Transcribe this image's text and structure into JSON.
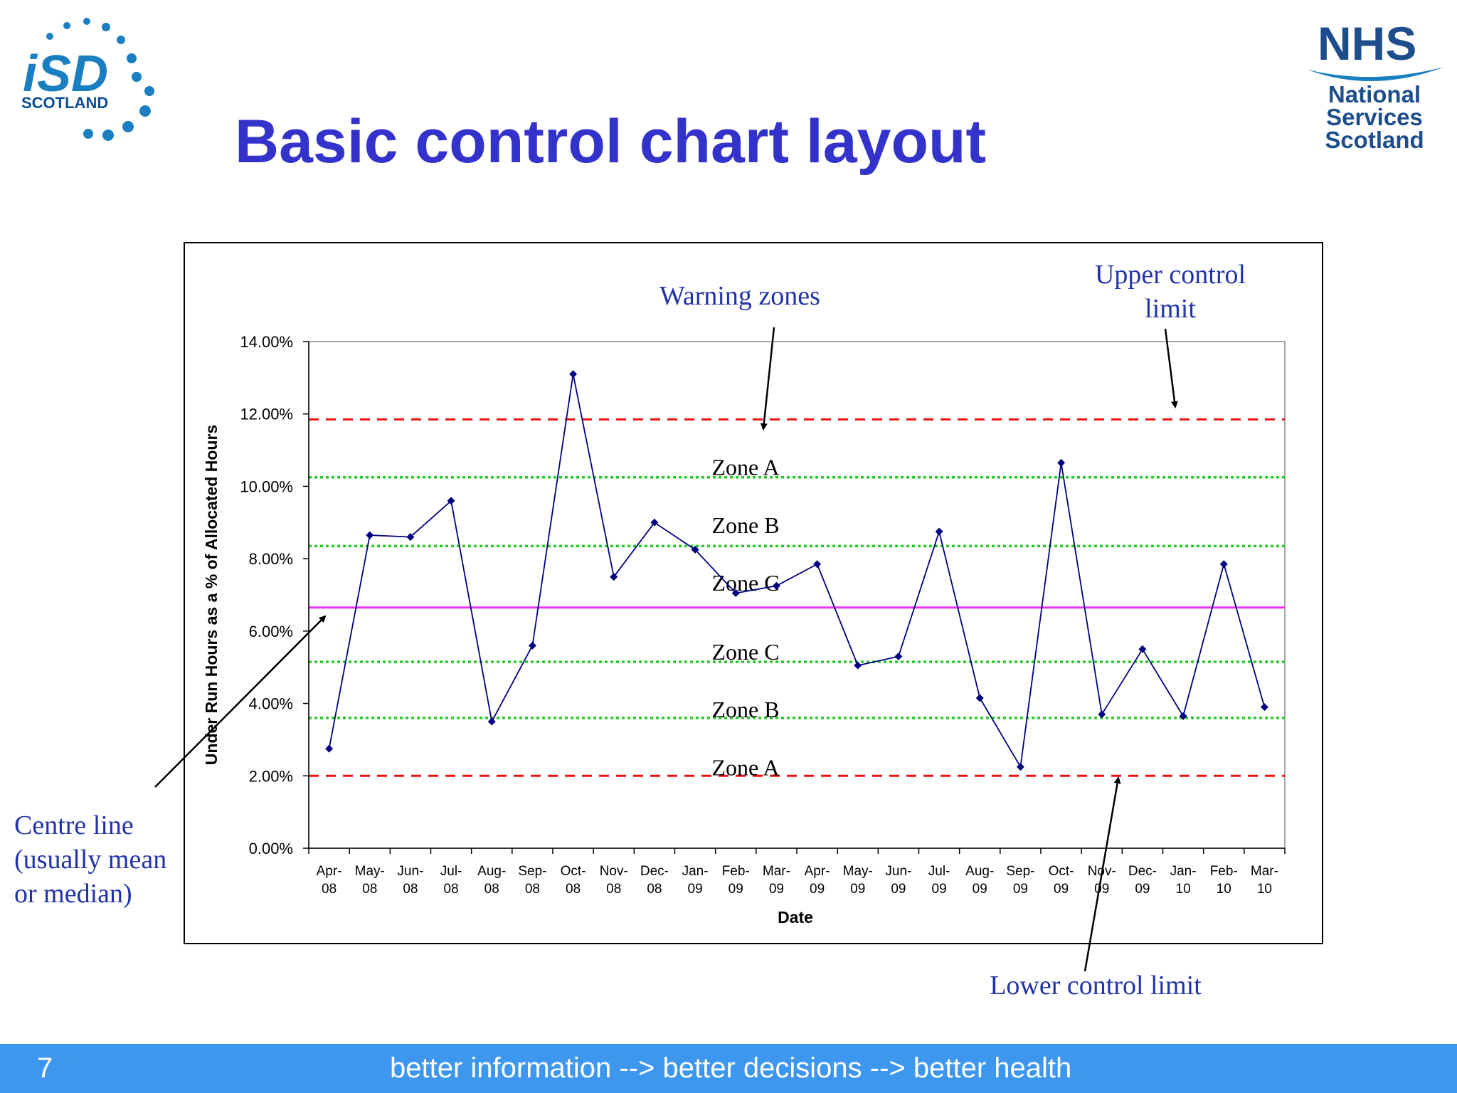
{
  "slide": {
    "title": "Basic control chart layout",
    "page_number": "7",
    "tagline": "better information --> better decisions --> better health"
  },
  "logos": {
    "isd": {
      "text": "SCOTLAND",
      "mark": "iSD",
      "colors": [
        "#1a7fc1",
        "#0a4f94"
      ]
    },
    "nhs": {
      "mark": "NHS",
      "lines": [
        "National",
        "Services",
        "Scotland"
      ],
      "color": "#1e4d8c"
    }
  },
  "annotations": {
    "warning_zones": "Warning zones",
    "upper_control_limit": [
      "Upper control",
      "limit"
    ],
    "lower_control_limit": "Lower control limit",
    "centre_line": [
      "Centre line",
      "(usually mean",
      "or median)"
    ]
  },
  "colors": {
    "accent": "#3333cc",
    "annotation": "#2233aa",
    "footer": "#3d97ee",
    "series": "#000080",
    "control_limits": "#ee1111",
    "zone_lines": "#22cc22",
    "centre_line": "#ee33ee"
  },
  "chart_data": {
    "type": "line",
    "xlabel": "Date",
    "ylabel": "Under Run Hours as a % of Allocated Hours",
    "ylim": [
      0,
      14
    ],
    "yticks": [
      "0.00%",
      "2.00%",
      "4.00%",
      "6.00%",
      "8.00%",
      "10.00%",
      "12.00%",
      "14.00%"
    ],
    "categories": [
      [
        "Apr-",
        "08"
      ],
      [
        "May-",
        "08"
      ],
      [
        "Jun-",
        "08"
      ],
      [
        "Jul-",
        "08"
      ],
      [
        "Aug-",
        "08"
      ],
      [
        "Sep-",
        "08"
      ],
      [
        "Oct-",
        "08"
      ],
      [
        "Nov-",
        "08"
      ],
      [
        "Dec-",
        "08"
      ],
      [
        "Jan-",
        "09"
      ],
      [
        "Feb-",
        "09"
      ],
      [
        "Mar-",
        "09"
      ],
      [
        "Apr-",
        "09"
      ],
      [
        "May-",
        "09"
      ],
      [
        "Jun-",
        "09"
      ],
      [
        "Jul-",
        "09"
      ],
      [
        "Aug-",
        "09"
      ],
      [
        "Sep-",
        "09"
      ],
      [
        "Oct-",
        "09"
      ],
      [
        "Nov-",
        "09"
      ],
      [
        "Dec-",
        "09"
      ],
      [
        "Jan-",
        "10"
      ],
      [
        "Feb-",
        "10"
      ],
      [
        "Mar-",
        "10"
      ]
    ],
    "values": [
      2.75,
      8.65,
      8.6,
      9.6,
      3.5,
      5.6,
      13.1,
      7.5,
      9.0,
      8.25,
      7.05,
      7.25,
      7.85,
      5.05,
      5.3,
      8.75,
      4.15,
      2.25,
      10.65,
      3.7,
      5.5,
      3.65,
      7.85,
      3.9
    ],
    "grid": false,
    "reference_lines": {
      "upper_control_limit": 11.85,
      "zone_ab_upper": 10.25,
      "zone_bc_upper": 8.35,
      "centre_line": 6.65,
      "zone_bc_lower": 5.15,
      "zone_ab_lower": 3.6,
      "lower_control_limit": 2.0
    },
    "zones": [
      {
        "label": "Zone A",
        "y": 10.55
      },
      {
        "label": "Zone B",
        "y": 8.95
      },
      {
        "label": "Zone C",
        "y": 7.35
      },
      {
        "label": "Zone C",
        "y": 5.45
      },
      {
        "label": "Zone B",
        "y": 3.85
      },
      {
        "label": "Zone A",
        "y": 2.25
      }
    ]
  }
}
